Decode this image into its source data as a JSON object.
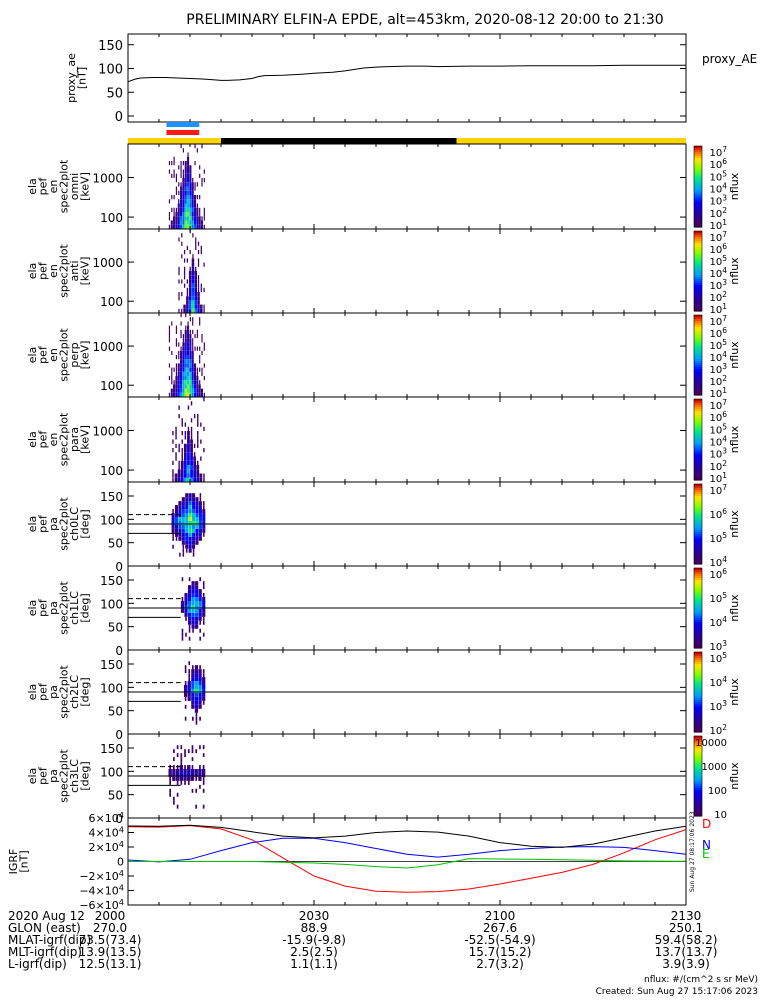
{
  "title": "PRELIMINARY ELFIN-A EPDE, alt=453km, 2020-08-12 20:00 to 21:30",
  "colors": {
    "yellow": "#ffd400",
    "black": "#000000",
    "blue_bar": "#1e90ff",
    "red_bar": "#ff1a1a",
    "bx": "#0000ff",
    "by": "#00c000",
    "bz": "#ff0000",
    "bmag": "#000000"
  },
  "chart_data": [
    {
      "type": "line",
      "panel": "proxy_ae",
      "ylabel": [
        "proxy_ae",
        "[nT]"
      ],
      "legend": "proxy_AE",
      "yticks": [
        "150",
        "100",
        "50",
        "0"
      ],
      "ylim": [
        0,
        160
      ],
      "x_minutes": [
        0,
        1,
        2,
        4,
        6,
        8,
        10,
        12,
        14,
        15,
        16,
        18,
        20,
        21,
        22,
        25,
        28,
        30,
        33,
        35,
        38,
        40,
        42,
        45,
        48,
        50,
        55,
        60,
        65,
        70,
        75,
        80,
        85,
        90
      ],
      "values": [
        72,
        77,
        80,
        81,
        81,
        80,
        79,
        78,
        76,
        75,
        75,
        76,
        79,
        83,
        85,
        86,
        88,
        90,
        92,
        95,
        101,
        103,
        104,
        105,
        105,
        104,
        105,
        105,
        106,
        106,
        106,
        107,
        107,
        107
      ]
    },
    {
      "type": "bar",
      "panel": "region-bar",
      "segments": [
        {
          "from": 0,
          "to": 15,
          "color": "yellow"
        },
        {
          "from": 15,
          "to": 53,
          "color": "black"
        },
        {
          "from": 53,
          "to": 90,
          "color": "yellow"
        }
      ],
      "markers": [
        {
          "from": 6.2,
          "to": 11.5,
          "color": "blue_bar",
          "row": 0
        },
        {
          "from": 6.2,
          "to": 11.5,
          "color": "red_bar",
          "row": 1
        }
      ]
    },
    {
      "type": "heatmap",
      "panel": "spec-en-omni",
      "ylabel": [
        "ela",
        "pef",
        "en",
        "spec2plot",
        "omni",
        "[keV]"
      ],
      "yticks": [
        "1000",
        "100"
      ],
      "ylog": true,
      "ylim": [
        50,
        7000
      ],
      "colorbar": {
        "label": "nflux",
        "ticks": [
          "10^7",
          "10^6",
          "10^5",
          "10^4",
          "10^3",
          "10^2",
          "10^1"
        ]
      },
      "x_range_minutes": [
        6.5,
        12.5
      ],
      "intensity_profile": [
        0.05,
        0.1,
        0.15,
        0.2,
        0.3,
        0.45,
        0.55,
        0.7,
        0.75,
        0.65,
        0.5,
        0.35,
        0.25,
        0.15,
        0.1,
        0.05
      ]
    },
    {
      "type": "heatmap",
      "panel": "spec-en-anti",
      "ylabel": [
        "ela",
        "pef",
        "en",
        "spec2plot",
        "anti",
        "[keV]"
      ],
      "yticks": [
        "1000",
        "100"
      ],
      "ylog": true,
      "ylim": [
        50,
        7000
      ],
      "colorbar": {
        "label": "nflux",
        "ticks": [
          "10^7",
          "10^6",
          "10^5",
          "10^4",
          "10^3",
          "10^2",
          "10^1"
        ]
      },
      "x_range_minutes": [
        8,
        12.5
      ],
      "intensity_profile": [
        0.05,
        0.05,
        0.1,
        0.2,
        0.45,
        0.6,
        0.45,
        0.25,
        0.1,
        0.05
      ]
    },
    {
      "type": "heatmap",
      "panel": "spec-en-perp",
      "ylabel": [
        "ela",
        "pef",
        "en",
        "spec2plot",
        "perp",
        "[keV]"
      ],
      "yticks": [
        "1000",
        "100"
      ],
      "ylog": true,
      "ylim": [
        50,
        7000
      ],
      "colorbar": {
        "label": "nflux",
        "ticks": [
          "10^7",
          "10^6",
          "10^5",
          "10^4",
          "10^3",
          "10^2",
          "10^1"
        ]
      },
      "x_range_minutes": [
        6.5,
        12.5
      ],
      "intensity_profile": [
        0.05,
        0.1,
        0.15,
        0.25,
        0.35,
        0.5,
        0.6,
        0.72,
        0.75,
        0.68,
        0.5,
        0.35,
        0.25,
        0.15,
        0.1,
        0.05
      ]
    },
    {
      "type": "heatmap",
      "panel": "spec-en-para",
      "ylabel": [
        "ela",
        "pef",
        "en",
        "spec2plot",
        "para",
        "[keV]"
      ],
      "yticks": [
        "1000",
        "100"
      ],
      "ylog": true,
      "ylim": [
        50,
        7000
      ],
      "colorbar": {
        "label": "nflux",
        "ticks": [
          "10^7",
          "10^6",
          "10^5",
          "10^4",
          "10^3",
          "10^2",
          "10^1"
        ]
      },
      "x_range_minutes": [
        7,
        12.5
      ],
      "intensity_profile": [
        0.05,
        0.1,
        0.15,
        0.25,
        0.4,
        0.55,
        0.45,
        0.3,
        0.2,
        0.1,
        0.05
      ]
    },
    {
      "type": "heatmap",
      "panel": "spec-pa-ch0",
      "ylabel": [
        "ela",
        "pef",
        "pa",
        "spec2plot",
        "ch0LC",
        "[deg]"
      ],
      "yticks": [
        "150",
        "100",
        "50",
        "0"
      ],
      "ylim": [
        0,
        180
      ],
      "colorbar": {
        "label": "nflux",
        "ticks": [
          "10^7",
          "10^6",
          "10^5",
          "10^4"
        ]
      },
      "x_range_minutes": [
        7,
        12.5
      ],
      "loss_cone_solid": 90,
      "loss_cone_dashed": 110,
      "loss_cone_low": 70,
      "intensity_profile": [
        0.3,
        0.4,
        0.5,
        0.6,
        0.7,
        0.8,
        0.7,
        0.6,
        0.5,
        0.35
      ]
    },
    {
      "type": "heatmap",
      "panel": "spec-pa-ch1",
      "ylabel": [
        "ela",
        "pef",
        "pa",
        "spec2plot",
        "ch1LC",
        "[deg]"
      ],
      "yticks": [
        "150",
        "100",
        "50",
        "0"
      ],
      "ylim": [
        0,
        180
      ],
      "colorbar": {
        "label": "nflux",
        "ticks": [
          "10^6",
          "10^5",
          "10^4",
          "10^3"
        ]
      },
      "x_range_minutes": [
        8.5,
        12.5
      ],
      "loss_cone_solid": 90,
      "loss_cone_dashed": 110,
      "loss_cone_low": 70,
      "intensity_profile": [
        0.2,
        0.35,
        0.55,
        0.65,
        0.6,
        0.45,
        0.3
      ]
    },
    {
      "type": "heatmap",
      "panel": "spec-pa-ch2",
      "ylabel": [
        "ela",
        "pef",
        "pa",
        "spec2plot",
        "ch2LC",
        "[deg]"
      ],
      "yticks": [
        "150",
        "100",
        "50",
        "0"
      ],
      "ylim": [
        0,
        180
      ],
      "colorbar": {
        "label": "nflux",
        "ticks": [
          "10^5",
          "10^4",
          "10^3",
          "10^2"
        ]
      },
      "x_range_minutes": [
        9,
        12.5
      ],
      "loss_cone_solid": 90,
      "loss_cone_dashed": 110,
      "loss_cone_low": 70,
      "intensity_profile": [
        0.2,
        0.3,
        0.5,
        0.6,
        0.5,
        0.35
      ]
    },
    {
      "type": "heatmap",
      "panel": "spec-pa-ch3",
      "ylabel": [
        "ela",
        "pef",
        "pa",
        "spec2plot",
        "ch3LC",
        "[deg]"
      ],
      "yticks": [
        "150",
        "100",
        "50",
        "0"
      ],
      "ylim": [
        0,
        180
      ],
      "colorbar": {
        "label": "nflux",
        "ticks": [
          "10000",
          "1000",
          "100",
          "10"
        ]
      },
      "x_range_minutes": [
        6.5,
        12.5
      ],
      "loss_cone_solid": 90,
      "loss_cone_dashed": 110,
      "loss_cone_low": 70,
      "intensity_profile": [
        0.15,
        0.2,
        0.2,
        0.25,
        0.2,
        0.25,
        0.2,
        0.15,
        0.2,
        0.15
      ]
    },
    {
      "type": "line",
      "panel": "igrf",
      "ylabel": [
        "IGRF",
        "[nT]"
      ],
      "yticks": [
        "6×10^4",
        "4×10^4",
        "2×10^4",
        "0",
        "−2×10^4",
        "−4×10^4",
        "−6×10^4"
      ],
      "ylim": [
        -60000,
        60000
      ],
      "legend": [
        "D",
        "N",
        "E"
      ],
      "x_minutes": [
        0,
        5,
        10,
        15,
        20,
        25,
        30,
        35,
        40,
        45,
        50,
        55,
        60,
        65,
        70,
        75,
        80,
        85,
        90
      ],
      "series": [
        {
          "name": "D",
          "color": "bz",
          "values": [
            48000,
            47500,
            49500,
            45000,
            30000,
            5000,
            -20000,
            -34000,
            -41000,
            -42500,
            -41500,
            -38000,
            -31000,
            -23000,
            -15000,
            -4000,
            12000,
            30000,
            44000
          ]
        },
        {
          "name": "N",
          "color": "bx",
          "values": [
            2000,
            -500,
            3000,
            15000,
            26000,
            32000,
            32000,
            26000,
            18000,
            10000,
            6000,
            10000,
            15000,
            18000,
            20000,
            20500,
            19500,
            15000,
            10000
          ]
        },
        {
          "name": "E",
          "color": "by",
          "values": [
            0,
            0,
            0,
            0,
            0,
            -1000,
            -2000,
            -4000,
            -7000,
            -9000,
            -4500,
            4000,
            3500,
            3000,
            2500,
            1800,
            800,
            500,
            300
          ]
        },
        {
          "name": "|B|",
          "color": "bmag",
          "values": [
            49000,
            48500,
            50000,
            47000,
            41000,
            35000,
            32500,
            35000,
            40000,
            42000,
            40500,
            35000,
            26000,
            21000,
            19500,
            24000,
            33000,
            42000,
            48500
          ]
        }
      ]
    }
  ],
  "x_axis": {
    "ticks": [
      "2000",
      "2030",
      "2100",
      "2130"
    ],
    "row_labels": [
      "2020 Aug 12",
      "GLON (east)",
      "MLAT-igrf(dip)",
      "MLT-igrf(dip)",
      "L-igrf(dip)"
    ],
    "columns": [
      [
        "2000",
        "270.0",
        "73.5(73.4)",
        "13.9(13.5)",
        "12.5(13.1)"
      ],
      [
        "2030",
        "88.9",
        "-15.9(-9.8)",
        "2.5(2.5)",
        "1.1(1.1)"
      ],
      [
        "2100",
        "267.6",
        "-52.5(-54.9)",
        "15.7(15.2)",
        "2.7(3.2)"
      ],
      [
        "2130",
        "250.1",
        "59.4(58.2)",
        "13.7(13.7)",
        "3.9(3.9)"
      ]
    ]
  },
  "footer": {
    "units": "nflux: #/(cm^2 s sr MeV)",
    "created": "Created: Sun Aug 27 15:17:06 2023",
    "sidebar_stamp": "Sun Aug 27 08:17:06 2023"
  }
}
